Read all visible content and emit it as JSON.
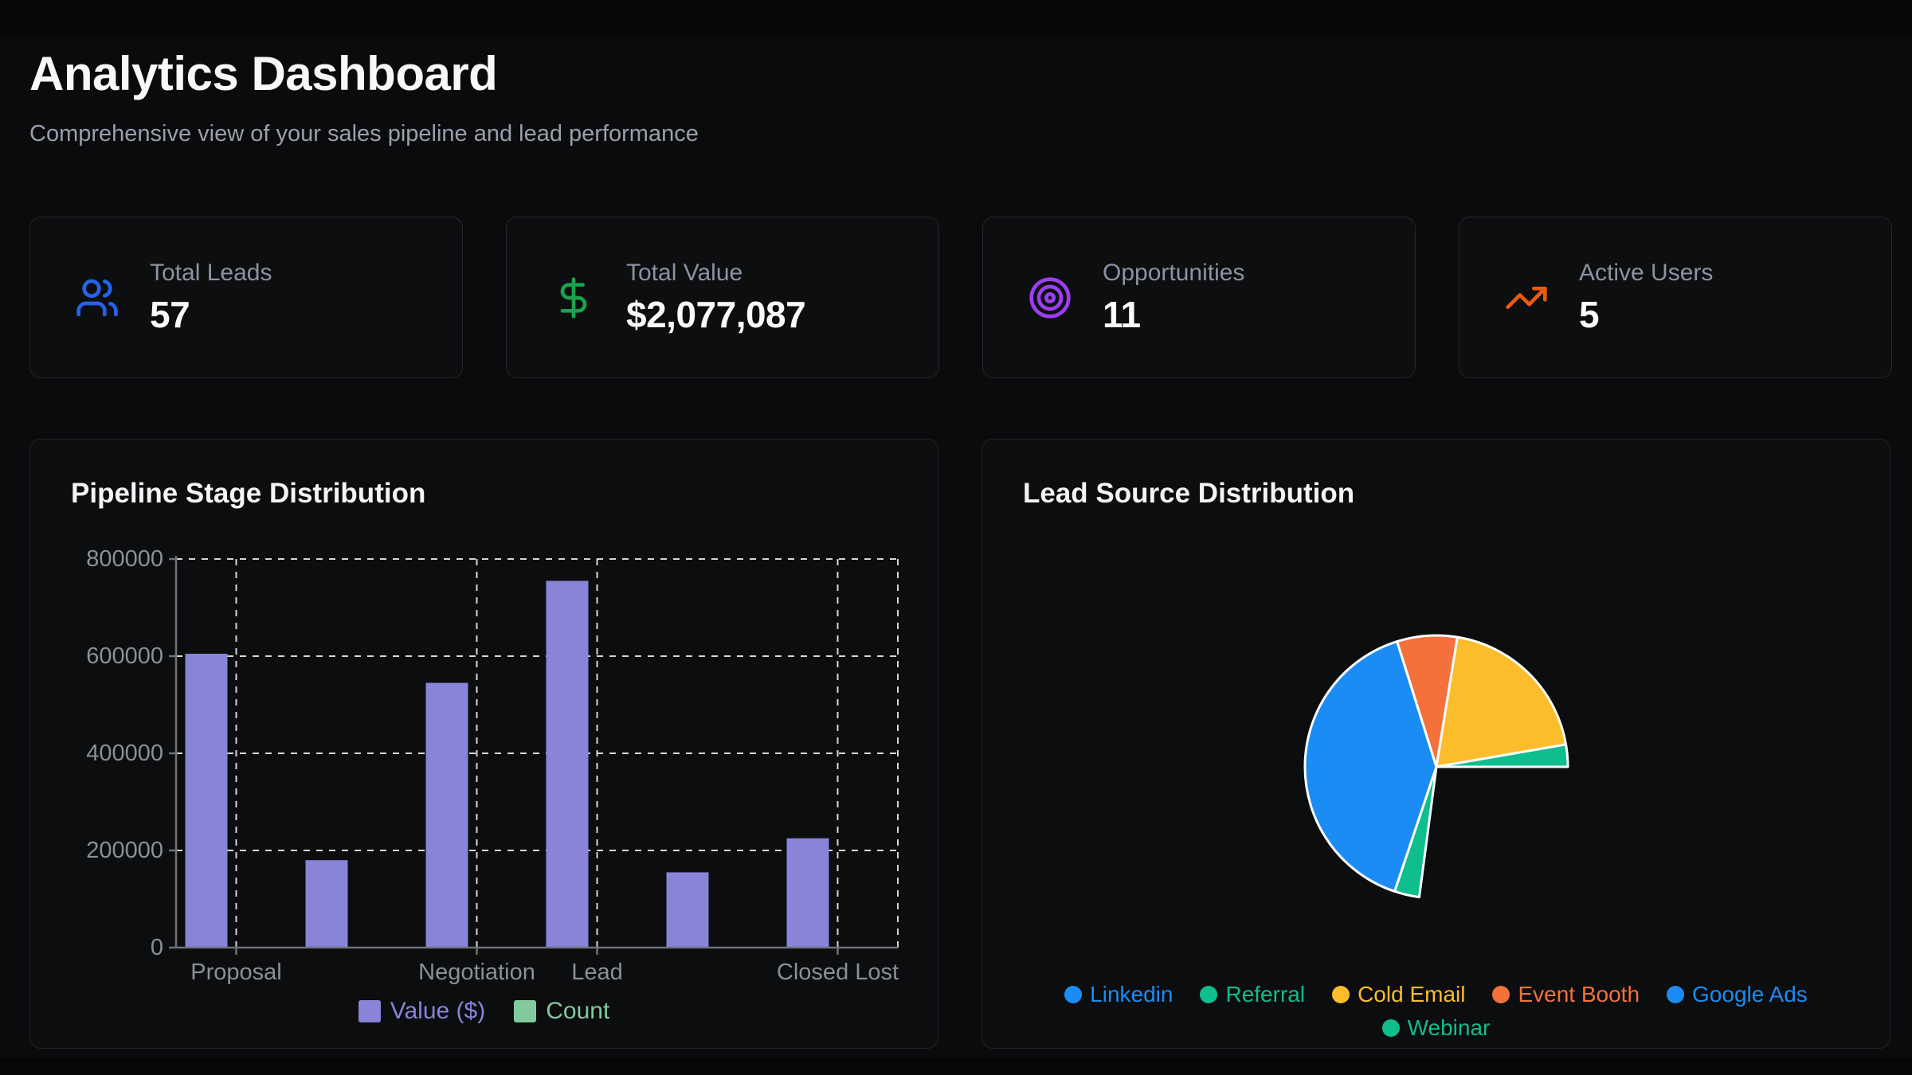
{
  "page": {
    "title": "Analytics Dashboard",
    "subtitle": "Comprehensive view of your sales pipeline and lead performance"
  },
  "stats": [
    {
      "label": "Total Leads",
      "value": "57",
      "icon": "users-icon",
      "color": "#2563eb"
    },
    {
      "label": "Total Value",
      "value": "$2,077,087",
      "icon": "dollar-icon",
      "color": "#1ca24c"
    },
    {
      "label": "Opportunities",
      "value": "11",
      "icon": "target-icon",
      "color": "#9c3ef2"
    },
    {
      "label": "Active Users",
      "value": "5",
      "icon": "trending-up-icon",
      "color": "#e95c0e"
    }
  ],
  "chart_data": [
    {
      "type": "bar",
      "title": "Pipeline Stage Distribution",
      "categories": [
        "Proposal",
        "",
        "Negotiation",
        "Lead",
        "",
        "Closed Lost"
      ],
      "series": [
        {
          "name": "Value ($)",
          "color": "#8884d8",
          "values": [
            605000,
            180000,
            545000,
            755000,
            155000,
            225000
          ]
        },
        {
          "name": "Count",
          "color": "#82ca9d",
          "values": null
        }
      ],
      "ylim": [
        0,
        800000
      ],
      "yticks": [
        0,
        200000,
        400000,
        600000,
        800000
      ],
      "grid": "dashed",
      "legend_position": "bottom",
      "axis_text_color": "#8b8f97"
    },
    {
      "type": "pie",
      "title": "Lead Source Distribution",
      "legend": [
        {
          "label": "Linkedin",
          "color": "#1b8cf4"
        },
        {
          "label": "Referral",
          "color": "#10bd8d"
        },
        {
          "label": "Cold Email",
          "color": "#fbbd2c"
        },
        {
          "label": "Event Booth",
          "color": "#f4713c"
        },
        {
          "label": "Google Ads",
          "color": "#1b8cf4"
        },
        {
          "label": "Webinar",
          "color": "#10bd8d"
        }
      ],
      "slices": [
        {
          "name": "Linkedin",
          "color": "#1b8cf4",
          "start_deg": 198.5,
          "end_deg": 342.6,
          "percent_est": 40.0
        },
        {
          "name": "Event Booth",
          "color": "#f4713c",
          "start_deg": 342.6,
          "end_deg": 369.2,
          "percent_est": 7.4
        },
        {
          "name": "Cold Email",
          "color": "#fbbd2c",
          "start_deg": 9.2,
          "end_deg": 80.2,
          "percent_est": 19.7
        },
        {
          "name": "Referral",
          "color": "#10bd8d",
          "start_deg": 80.2,
          "end_deg": 90.0,
          "percent_est": 2.7
        },
        {
          "name": "Webinar",
          "color": "#10bd8d",
          "start_deg": 187.5,
          "end_deg": 198.5,
          "percent_est": 3.1
        }
      ],
      "unrendered_arc_deg": 97.5
    }
  ]
}
